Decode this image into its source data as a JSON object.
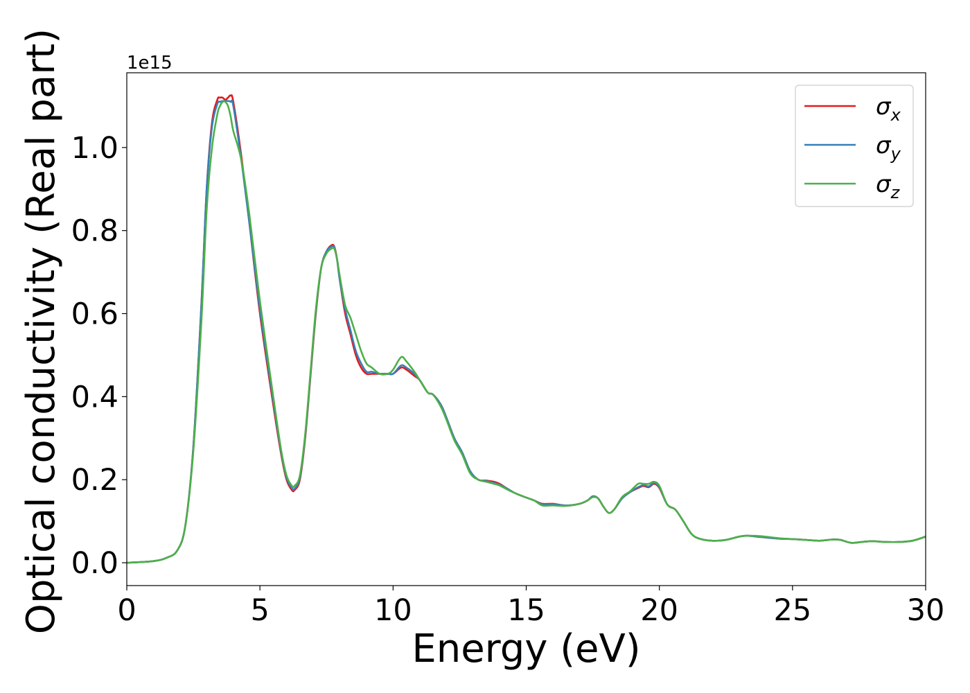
{
  "chart_data": {
    "type": "line",
    "xlabel": "Energy (eV)",
    "ylabel": "Optical conductivity (Real part)",
    "offset_text": "1e15",
    "xlim": [
      0,
      30
    ],
    "ylim": [
      -0.055,
      1.18
    ],
    "xticks": [
      0,
      5,
      10,
      15,
      20,
      25,
      30
    ],
    "xtick_labels": [
      "0",
      "5",
      "10",
      "15",
      "20",
      "25",
      "30"
    ],
    "yticks": [
      0.0,
      0.2,
      0.4,
      0.6,
      0.8,
      1.0
    ],
    "ytick_labels": [
      "0.0",
      "0.2",
      "0.4",
      "0.6",
      "0.8",
      "1.0"
    ],
    "grid": false,
    "legend_position": "top-right",
    "series": [
      {
        "name": "σx",
        "base": "σ",
        "sub": "x",
        "color": "#e41a1c",
        "x": [
          0,
          1,
          1.5,
          1.9,
          2.2,
          2.5,
          2.8,
          3.0,
          3.2,
          3.4,
          3.5,
          3.6,
          3.7,
          3.8,
          3.9,
          4.0,
          4.3,
          4.6,
          5.0,
          5.5,
          5.8,
          6.0,
          6.2,
          6.3,
          6.5,
          6.7,
          6.9,
          7.1,
          7.3,
          7.5,
          7.7,
          7.8,
          7.9,
          8.0,
          8.2,
          8.4,
          8.6,
          8.8,
          9.0,
          9.2,
          9.5,
          9.8,
          10.0,
          10.3,
          10.5,
          10.8,
          11.0,
          11.3,
          11.5,
          11.8,
          12.0,
          12.3,
          12.6,
          12.9,
          13.2,
          13.5,
          13.8,
          14.0,
          14.3,
          14.6,
          15.0,
          15.3,
          15.6,
          16.0,
          16.5,
          17.0,
          17.3,
          17.5,
          17.7,
          17.9,
          18.1,
          18.3,
          18.6,
          18.9,
          19.2,
          19.4,
          19.6,
          19.8,
          20.0,
          20.3,
          20.6,
          20.9,
          21.2,
          21.5,
          22.0,
          22.5,
          23.0,
          23.3,
          23.8,
          24.5,
          25.0,
          25.5,
          26.0,
          26.5,
          26.8,
          27.2,
          27.6,
          28.0,
          28.5,
          29.0,
          29.5,
          30.0
        ],
        "y": [
          0.0,
          0.004,
          0.012,
          0.03,
          0.09,
          0.28,
          0.62,
          0.9,
          1.06,
          1.115,
          1.12,
          1.12,
          1.115,
          1.12,
          1.125,
          1.11,
          0.98,
          0.82,
          0.6,
          0.38,
          0.26,
          0.2,
          0.175,
          0.175,
          0.2,
          0.3,
          0.45,
          0.6,
          0.71,
          0.75,
          0.765,
          0.76,
          0.73,
          0.68,
          0.6,
          0.55,
          0.5,
          0.47,
          0.455,
          0.455,
          0.455,
          0.455,
          0.455,
          0.47,
          0.465,
          0.45,
          0.44,
          0.41,
          0.405,
          0.38,
          0.35,
          0.3,
          0.265,
          0.22,
          0.2,
          0.198,
          0.195,
          0.19,
          0.178,
          0.167,
          0.157,
          0.15,
          0.142,
          0.142,
          0.138,
          0.142,
          0.15,
          0.16,
          0.155,
          0.135,
          0.12,
          0.128,
          0.155,
          0.17,
          0.18,
          0.185,
          0.182,
          0.19,
          0.18,
          0.14,
          0.128,
          0.1,
          0.07,
          0.058,
          0.053,
          0.055,
          0.063,
          0.065,
          0.062,
          0.058,
          0.057,
          0.055,
          0.053,
          0.056,
          0.055,
          0.048,
          0.05,
          0.052,
          0.05,
          0.05,
          0.053,
          0.063
        ]
      },
      {
        "name": "σy",
        "base": "σ",
        "sub": "y",
        "color": "#377eb8",
        "x": [
          0,
          1,
          1.5,
          1.9,
          2.2,
          2.5,
          2.8,
          3.0,
          3.2,
          3.4,
          3.5,
          3.6,
          3.7,
          3.8,
          3.9,
          4.0,
          4.3,
          4.6,
          5.0,
          5.5,
          5.8,
          6.0,
          6.2,
          6.3,
          6.5,
          6.7,
          6.9,
          7.1,
          7.3,
          7.5,
          7.7,
          7.8,
          7.9,
          8.0,
          8.2,
          8.4,
          8.6,
          8.8,
          9.0,
          9.2,
          9.5,
          9.8,
          10.0,
          10.3,
          10.5,
          10.8,
          11.0,
          11.3,
          11.5,
          11.8,
          12.0,
          12.3,
          12.6,
          12.9,
          13.2,
          13.5,
          13.8,
          14.0,
          14.3,
          14.6,
          15.0,
          15.3,
          15.6,
          16.0,
          16.5,
          17.0,
          17.3,
          17.5,
          17.7,
          17.9,
          18.1,
          18.3,
          18.6,
          18.9,
          19.2,
          19.4,
          19.6,
          19.8,
          20.0,
          20.3,
          20.6,
          20.9,
          21.2,
          21.5,
          22.0,
          22.5,
          23.0,
          23.3,
          23.8,
          24.5,
          25.0,
          25.5,
          26.0,
          26.5,
          26.8,
          27.2,
          27.6,
          28.0,
          28.5,
          29.0,
          29.5,
          30.0
        ],
        "y": [
          0.0,
          0.004,
          0.012,
          0.03,
          0.09,
          0.28,
          0.62,
          0.9,
          1.05,
          1.105,
          1.11,
          1.112,
          1.112,
          1.112,
          1.11,
          1.1,
          0.97,
          0.82,
          0.61,
          0.39,
          0.265,
          0.205,
          0.18,
          0.178,
          0.205,
          0.305,
          0.455,
          0.605,
          0.71,
          0.75,
          0.762,
          0.758,
          0.728,
          0.68,
          0.61,
          0.56,
          0.51,
          0.48,
          0.46,
          0.46,
          0.455,
          0.455,
          0.455,
          0.475,
          0.47,
          0.455,
          0.44,
          0.41,
          0.405,
          0.38,
          0.35,
          0.3,
          0.265,
          0.22,
          0.2,
          0.197,
          0.192,
          0.188,
          0.178,
          0.167,
          0.157,
          0.15,
          0.141,
          0.141,
          0.138,
          0.142,
          0.15,
          0.16,
          0.155,
          0.135,
          0.12,
          0.128,
          0.155,
          0.17,
          0.182,
          0.187,
          0.184,
          0.192,
          0.182,
          0.14,
          0.128,
          0.1,
          0.07,
          0.058,
          0.053,
          0.055,
          0.063,
          0.065,
          0.062,
          0.058,
          0.057,
          0.055,
          0.053,
          0.056,
          0.055,
          0.048,
          0.05,
          0.052,
          0.05,
          0.05,
          0.053,
          0.063
        ]
      },
      {
        "name": "σz",
        "base": "σ",
        "sub": "z",
        "color": "#4daf4a",
        "x": [
          0,
          1,
          1.5,
          1.9,
          2.2,
          2.5,
          2.8,
          3.0,
          3.2,
          3.4,
          3.5,
          3.6,
          3.7,
          3.8,
          3.9,
          4.0,
          4.3,
          4.6,
          5.0,
          5.5,
          5.8,
          6.0,
          6.2,
          6.3,
          6.5,
          6.7,
          6.9,
          7.1,
          7.3,
          7.5,
          7.7,
          7.8,
          7.9,
          8.0,
          8.2,
          8.4,
          8.6,
          8.8,
          9.0,
          9.2,
          9.5,
          9.8,
          10.0,
          10.3,
          10.5,
          10.8,
          11.0,
          11.3,
          11.5,
          11.8,
          12.0,
          12.3,
          12.6,
          12.9,
          13.2,
          13.5,
          13.8,
          14.0,
          14.3,
          14.6,
          15.0,
          15.3,
          15.6,
          16.0,
          16.5,
          17.0,
          17.3,
          17.5,
          17.7,
          17.9,
          18.1,
          18.3,
          18.6,
          18.9,
          19.2,
          19.4,
          19.6,
          19.8,
          20.0,
          20.3,
          20.6,
          20.9,
          21.2,
          21.5,
          22.0,
          22.5,
          23.0,
          23.3,
          23.8,
          24.5,
          25.0,
          25.5,
          26.0,
          26.5,
          26.8,
          27.2,
          27.6,
          28.0,
          28.5,
          29.0,
          29.5,
          30.0
        ],
        "y": [
          0.0,
          0.004,
          0.012,
          0.03,
          0.09,
          0.27,
          0.58,
          0.85,
          1.0,
          1.08,
          1.1,
          1.11,
          1.11,
          1.1,
          1.075,
          1.04,
          0.97,
          0.84,
          0.63,
          0.4,
          0.27,
          0.21,
          0.185,
          0.185,
          0.21,
          0.31,
          0.46,
          0.61,
          0.71,
          0.745,
          0.757,
          0.755,
          0.73,
          0.69,
          0.62,
          0.59,
          0.55,
          0.51,
          0.48,
          0.47,
          0.455,
          0.455,
          0.465,
          0.495,
          0.485,
          0.46,
          0.44,
          0.41,
          0.405,
          0.375,
          0.345,
          0.295,
          0.26,
          0.215,
          0.2,
          0.195,
          0.19,
          0.186,
          0.176,
          0.167,
          0.157,
          0.15,
          0.138,
          0.138,
          0.137,
          0.142,
          0.15,
          0.158,
          0.155,
          0.135,
          0.12,
          0.128,
          0.158,
          0.172,
          0.19,
          0.19,
          0.19,
          0.195,
          0.185,
          0.14,
          0.128,
          0.1,
          0.07,
          0.058,
          0.053,
          0.055,
          0.063,
          0.065,
          0.064,
          0.059,
          0.057,
          0.055,
          0.053,
          0.056,
          0.055,
          0.048,
          0.05,
          0.052,
          0.05,
          0.05,
          0.053,
          0.063
        ]
      }
    ]
  }
}
